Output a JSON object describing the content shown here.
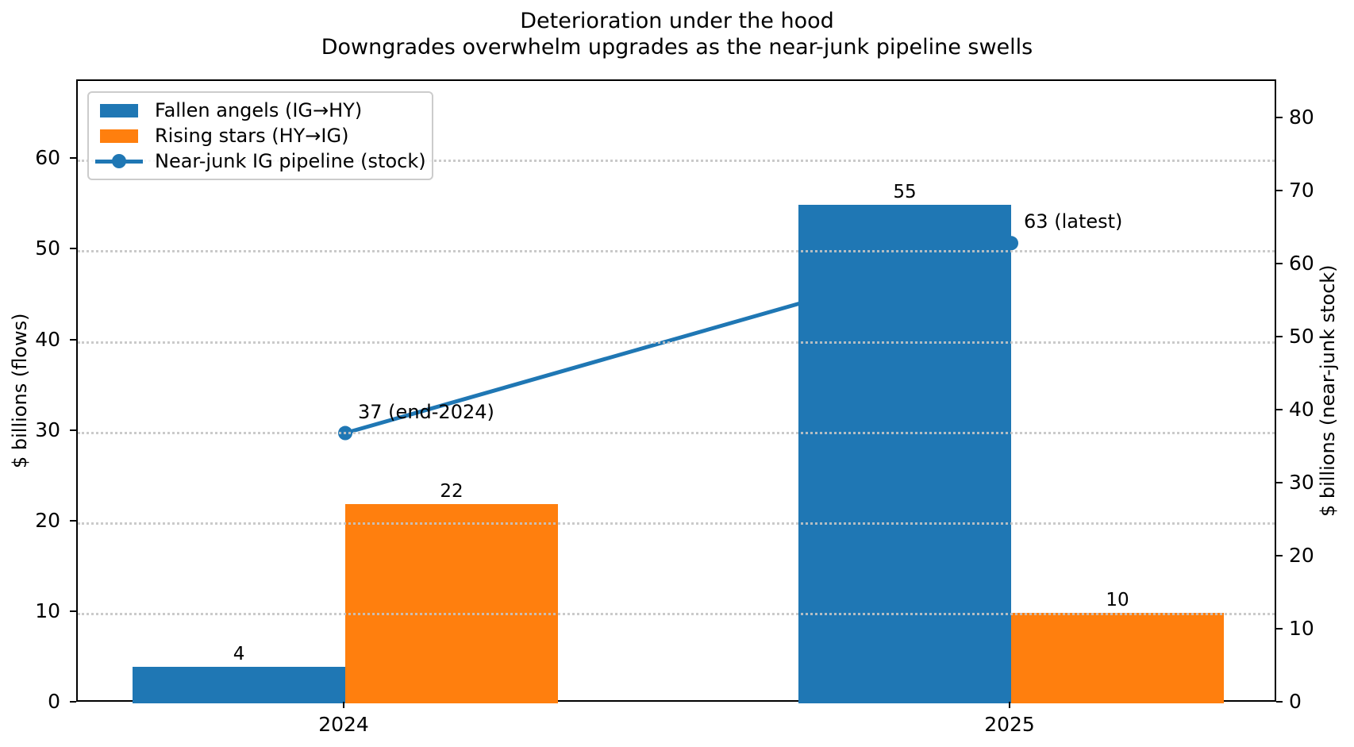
{
  "chart_data": {
    "type": "bar",
    "title": "Deterioration under the hood",
    "subtitle": "Downgrades overwhelm upgrades as the near-junk pipeline swells",
    "categories": [
      "2024",
      "2025"
    ],
    "series": [
      {
        "name": "Fallen angels (IG→HY)",
        "type": "bar",
        "axis": "left",
        "color": "#1f77b4",
        "values": [
          4,
          55
        ]
      },
      {
        "name": "Rising stars (HY→IG)",
        "type": "bar",
        "axis": "left",
        "color": "#ff7f0e",
        "values": [
          22,
          10
        ]
      },
      {
        "name": "Near-junk IG pipeline (stock)",
        "type": "line",
        "axis": "right",
        "color": "#1f77b4",
        "marker": "circle",
        "values": [
          37,
          63
        ],
        "point_labels": [
          "37 (end-2024)",
          "63 (latest)"
        ]
      }
    ],
    "bar_value_labels": [
      "4",
      "22",
      "55",
      "10"
    ],
    "axes": {
      "left": {
        "label": "$ billions (flows)",
        "ticks": [
          0,
          10,
          20,
          30,
          40,
          50,
          60
        ],
        "range": [
          0,
          68.7
        ]
      },
      "right": {
        "label": "$ billions (near-junk stock)",
        "ticks": [
          0,
          10,
          20,
          30,
          40,
          50,
          60,
          70,
          80
        ],
        "range": [
          0,
          85.2
        ]
      },
      "x": {
        "tick_labels": [
          "2024",
          "2025"
        ]
      }
    },
    "grid": {
      "show": true,
      "style": "dotted",
      "follows": "left-axis-ticks"
    },
    "legend": {
      "position": "upper-left",
      "entries": [
        "Fallen angels (IG→HY)",
        "Rising stars (HY→IG)",
        "Near-junk IG pipeline (stock)"
      ]
    },
    "colors": {
      "blue": "#1f77b4",
      "orange": "#ff7f0e",
      "grid": "#c4c4c4",
      "frame": "#000000"
    }
  }
}
